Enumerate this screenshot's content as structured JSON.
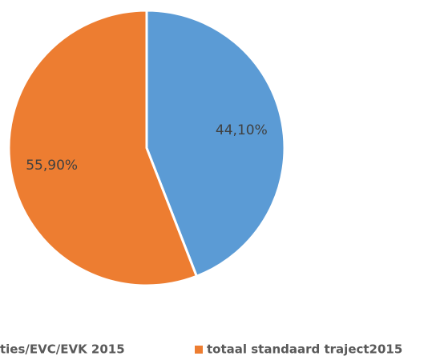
{
  "chart_data": {
    "type": "pie",
    "categories": [
      "ties/EVC/EVK 2015",
      "totaal standaard traject2015"
    ],
    "values": [
      44.1,
      55.9
    ],
    "value_labels": [
      "44,10%",
      "55,90%"
    ],
    "colors": [
      "#5b9bd5",
      "#ed7d31"
    ],
    "legend": "bottom"
  }
}
